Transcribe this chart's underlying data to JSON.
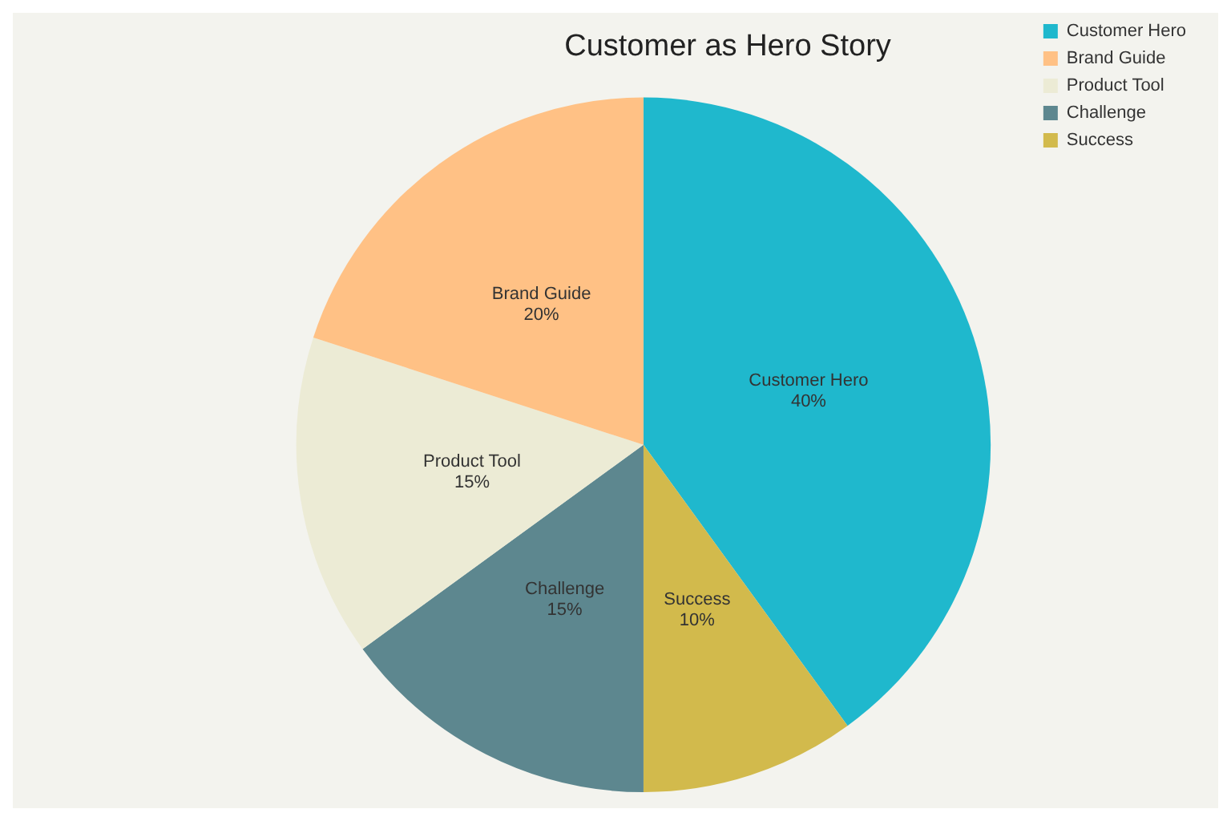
{
  "chart_data": {
    "type": "pie",
    "title": "Customer as Hero Story",
    "categories": [
      "Customer Hero",
      "Success",
      "Challenge",
      "Product Tool",
      "Brand Guide"
    ],
    "values": [
      40,
      10,
      15,
      15,
      20
    ],
    "colors": [
      "#1fb8cd",
      "#d2ba4c",
      "#5d878f",
      "#ecebd5",
      "#ffc185"
    ],
    "value_labels": [
      "40%",
      "10%",
      "15%",
      "15%",
      "20%"
    ],
    "legend": "top right"
  }
}
